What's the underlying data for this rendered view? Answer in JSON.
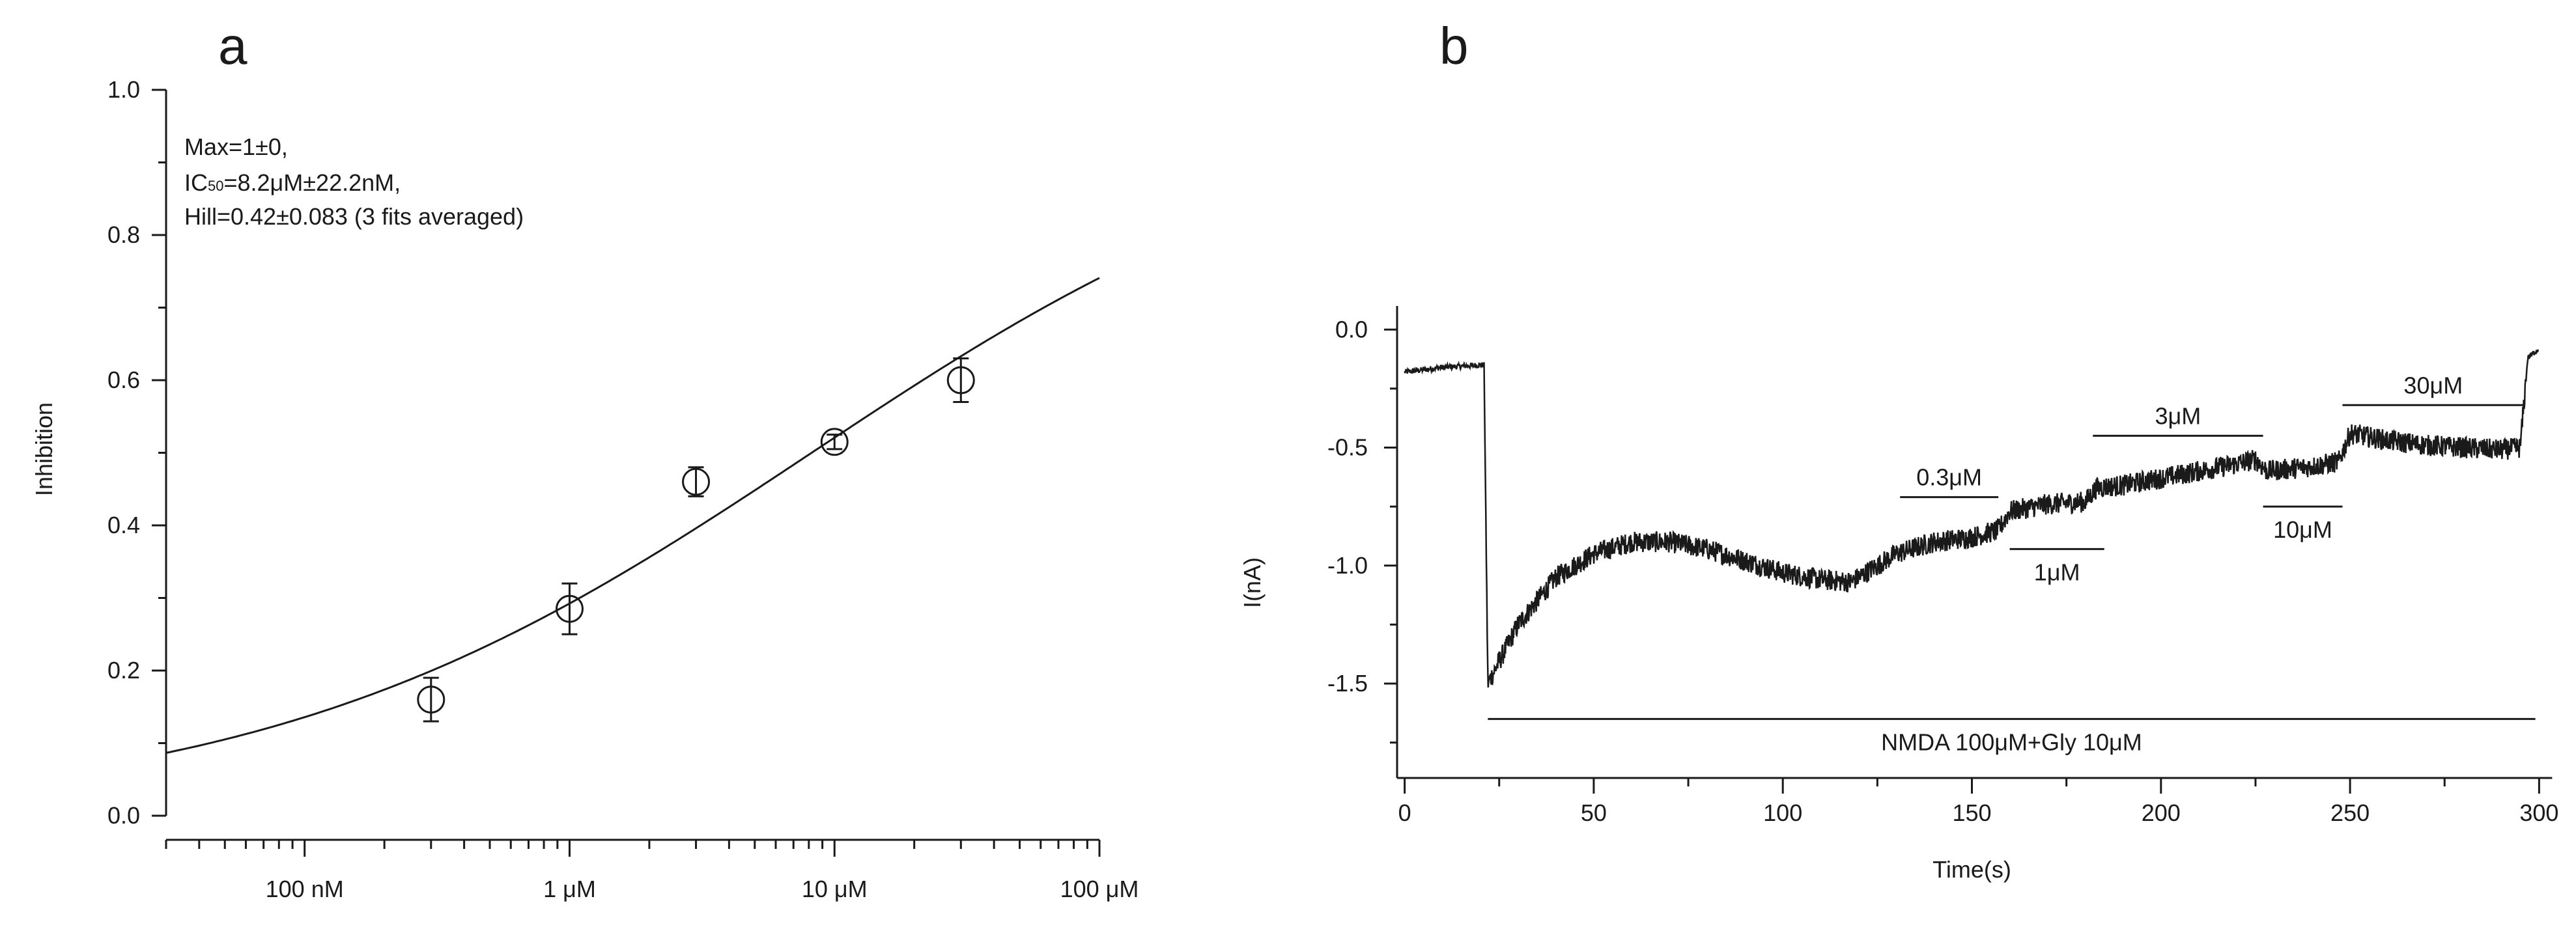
{
  "panel_a": {
    "letter": "a",
    "annotation": {
      "line1": "Max=1±0,",
      "line2_prefix": "IC",
      "line2_sub": "50",
      "line2_suffix": "=8.2μM±22.2nM,",
      "line3": "Hill=0.42±0.083 (3 fits averaged)"
    }
  },
  "panel_b": {
    "letter": "b"
  },
  "chart_data": [
    {
      "type": "scatter",
      "panel": "a",
      "title": "",
      "xlabel": "",
      "ylabel": "Inhibition",
      "x_scale": "log",
      "x_unit": "M",
      "xlim": [
        3e-08,
        0.0001
      ],
      "ylim": [
        0.0,
        1.0
      ],
      "x_tick_values": [
        1e-07,
        1e-06,
        1e-05,
        0.0001
      ],
      "x_tick_labels": [
        "100 nM",
        "1 μM",
        "10 μM",
        "100 μM"
      ],
      "y_tick_values": [
        0.0,
        0.2,
        0.4,
        0.6,
        0.8,
        1.0
      ],
      "y_tick_labels": [
        "0.0",
        "0.2",
        "0.4",
        "0.6",
        "0.8",
        "1.0"
      ],
      "grid": false,
      "points": [
        {
          "x": 3e-07,
          "y": 0.16,
          "err": 0.03
        },
        {
          "x": 1e-06,
          "y": 0.285,
          "err": 0.035
        },
        {
          "x": 3e-06,
          "y": 0.46,
          "err": 0.02
        },
        {
          "x": 1e-05,
          "y": 0.515,
          "err": 0.01
        },
        {
          "x": 3e-05,
          "y": 0.6,
          "err": 0.03
        }
      ],
      "fit": {
        "model": "Hill",
        "max": 1,
        "ic50": 8.2e-06,
        "hill": 0.42
      }
    },
    {
      "type": "line",
      "panel": "b",
      "title": "",
      "xlabel": "Time(s)",
      "ylabel": "I(nA)",
      "xlim": [
        -2,
        302
      ],
      "ylim": [
        -1.9,
        0.1
      ],
      "x_tick_values": [
        0,
        50,
        100,
        150,
        200,
        250,
        300
      ],
      "x_tick_labels": [
        "0",
        "50",
        "100",
        "150",
        "200",
        "250",
        "300"
      ],
      "y_tick_values": [
        0.0,
        -0.5,
        -1.0,
        -1.5
      ],
      "y_tick_labels": [
        "0.0",
        "-0.5",
        "-1.0",
        "-1.5"
      ],
      "grid": false,
      "trace": [
        [
          0,
          -0.18
        ],
        [
          10,
          -0.16
        ],
        [
          20,
          -0.15
        ],
        [
          21,
          -0.15
        ],
        [
          22,
          -1.5
        ],
        [
          30,
          -1.25
        ],
        [
          40,
          -1.05
        ],
        [
          50,
          -0.95
        ],
        [
          60,
          -0.9
        ],
        [
          70,
          -0.9
        ],
        [
          80,
          -0.93
        ],
        [
          90,
          -0.98
        ],
        [
          100,
          -1.03
        ],
        [
          110,
          -1.06
        ],
        [
          118,
          -1.07
        ],
        [
          125,
          -1.0
        ],
        [
          130,
          -0.95
        ],
        [
          140,
          -0.9
        ],
        [
          150,
          -0.88
        ],
        [
          157,
          -0.85
        ],
        [
          160,
          -0.77
        ],
        [
          170,
          -0.74
        ],
        [
          180,
          -0.73
        ],
        [
          183,
          -0.67
        ],
        [
          190,
          -0.66
        ],
        [
          200,
          -0.63
        ],
        [
          210,
          -0.6
        ],
        [
          220,
          -0.57
        ],
        [
          225,
          -0.55
        ],
        [
          228,
          -0.6
        ],
        [
          240,
          -0.58
        ],
        [
          247,
          -0.56
        ],
        [
          250,
          -0.44
        ],
        [
          260,
          -0.47
        ],
        [
          270,
          -0.49
        ],
        [
          280,
          -0.5
        ],
        [
          290,
          -0.51
        ],
        [
          295,
          -0.5
        ],
        [
          297,
          -0.12
        ],
        [
          300,
          -0.08
        ]
      ],
      "bars": [
        {
          "label": "0.3μM",
          "x0": 131,
          "x1": 157,
          "y": -0.71,
          "label_pos": "above"
        },
        {
          "label": "1μM",
          "x0": 160,
          "x1": 185,
          "y": -0.93,
          "label_pos": "below"
        },
        {
          "label": "3μM",
          "x0": 182,
          "x1": 227,
          "y": -0.45,
          "label_pos": "above"
        },
        {
          "label": "10μM",
          "x0": 227,
          "x1": 248,
          "y": -0.75,
          "label_pos": "below"
        },
        {
          "label": "30μM",
          "x0": 248,
          "x1": 296,
          "y": -0.32,
          "label_pos": "above"
        },
        {
          "label": "NMDA 100μM+Gly 10μM",
          "x0": 22,
          "x1": 299,
          "y": -1.65,
          "label_pos": "below"
        }
      ]
    }
  ]
}
